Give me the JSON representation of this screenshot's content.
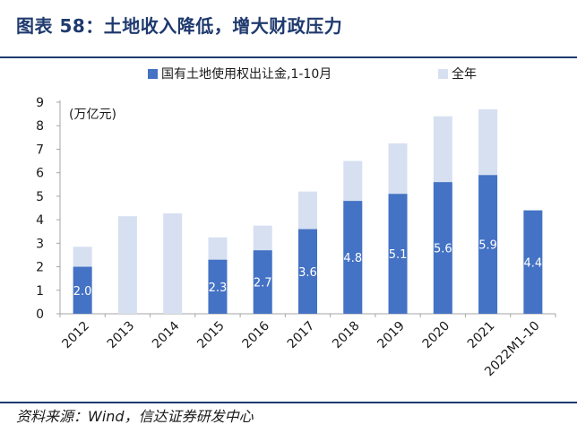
{
  "header": {
    "title": "图表 58：土地收入降低，增大财政压力"
  },
  "footer": {
    "source": "资料来源：Wind，信达证券研发中心"
  },
  "colors": {
    "land_sales": "#4472c4",
    "full_year": "#d6e0f1",
    "title": "#1f3a6e",
    "axis": "#a6a6a6"
  },
  "chart_data": {
    "type": "bar",
    "title": "",
    "ylabel": "(万亿元)",
    "xlabel": "",
    "ylim": [
      0,
      9
    ],
    "yticks": [
      0,
      1,
      2,
      3,
      4,
      5,
      6,
      7,
      8,
      9
    ],
    "grid": false,
    "legend_position": "top",
    "categories": [
      "2012",
      "2013",
      "2014",
      "2015",
      "2016",
      "2017",
      "2018",
      "2019",
      "2020",
      "2021",
      "2022M1-10"
    ],
    "series": [
      {
        "name": "国有土地使用权出让金,1-10月",
        "color": "#4472c4",
        "values": [
          2.0,
          null,
          null,
          2.3,
          2.7,
          3.6,
          4.8,
          5.1,
          5.6,
          5.9,
          4.4
        ]
      },
      {
        "name": "全年",
        "color": "#d6e0f1",
        "values": [
          2.85,
          4.15,
          4.27,
          3.25,
          3.75,
          5.2,
          6.5,
          7.25,
          8.4,
          8.7,
          null
        ]
      }
    ],
    "data_labels": [
      "2.0",
      "",
      "",
      "2.3",
      "2.7",
      "3.6",
      "4.8",
      "5.1",
      "5.6",
      "5.9",
      "4.4"
    ]
  }
}
